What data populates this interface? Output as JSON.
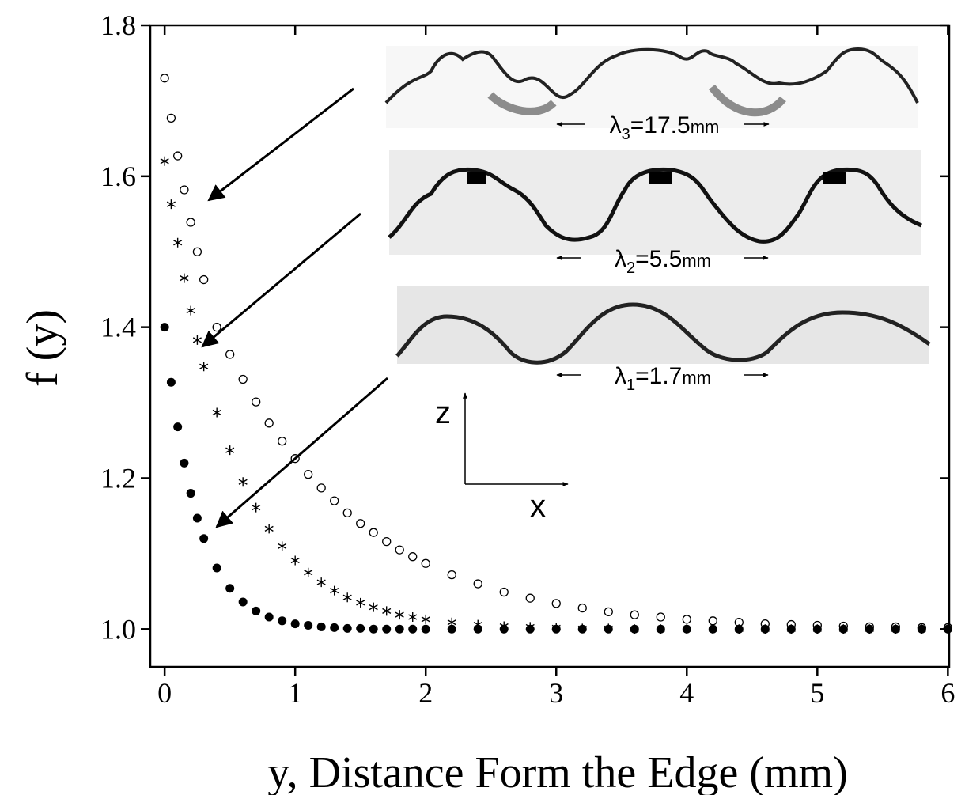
{
  "chart_data": {
    "type": "scatter",
    "xlabel": "y, Distance Form the Edge (mm)",
    "ylabel": "f (y)",
    "x": [
      0,
      0.05,
      0.1,
      0.15,
      0.2,
      0.25,
      0.3,
      0.4,
      0.5,
      0.6,
      0.7,
      0.8,
      0.9,
      1.0,
      1.1,
      1.2,
      1.3,
      1.4,
      1.5,
      1.6,
      1.7,
      1.8,
      1.9,
      2.0,
      2.2,
      2.4,
      2.6,
      2.8,
      3.0,
      3.2,
      3.4,
      3.6,
      3.8,
      4.0,
      4.2,
      4.4,
      4.6,
      4.8,
      5.0,
      5.2,
      5.4,
      5.6,
      5.8,
      6.0
    ],
    "series": [
      {
        "marker": "circle-open",
        "color": "#000000",
        "values": [
          1.73,
          1.677,
          1.627,
          1.582,
          1.539,
          1.5,
          1.463,
          1.4,
          1.364,
          1.331,
          1.301,
          1.273,
          1.249,
          1.226,
          1.205,
          1.187,
          1.17,
          1.154,
          1.14,
          1.128,
          1.116,
          1.105,
          1.096,
          1.087,
          1.072,
          1.06,
          1.049,
          1.041,
          1.034,
          1.028,
          1.023,
          1.019,
          1.016,
          1.013,
          1.011,
          1.009,
          1.007,
          1.006,
          1.005,
          1.004,
          1.003,
          1.003,
          1.002,
          1.002
        ]
      },
      {
        "marker": "asterisk",
        "color": "#000000",
        "values": [
          1.62,
          1.563,
          1.512,
          1.465,
          1.422,
          1.383,
          1.348,
          1.287,
          1.237,
          1.195,
          1.161,
          1.133,
          1.11,
          1.091,
          1.075,
          1.062,
          1.051,
          1.042,
          1.035,
          1.029,
          1.024,
          1.019,
          1.016,
          1.013,
          1.009,
          1.006,
          1.004,
          1.003,
          1.002,
          1.001,
          1.001,
          1,
          1,
          1,
          1,
          1,
          1,
          1,
          1,
          1,
          1,
          1,
          1,
          1
        ]
      },
      {
        "marker": "circle-filled",
        "color": "#000000",
        "values": [
          1.4,
          1.327,
          1.268,
          1.22,
          1.18,
          1.147,
          1.12,
          1.081,
          1.054,
          1.036,
          1.024,
          1.016,
          1.011,
          1.007,
          1.005,
          1.003,
          1.002,
          1.001,
          1.001,
          1,
          1,
          1,
          1,
          1,
          1,
          1,
          1,
          1,
          1,
          1,
          1,
          1,
          1,
          1,
          1,
          1,
          1,
          1,
          1,
          1,
          1,
          1,
          1,
          1
        ]
      }
    ],
    "xlim": [
      -0.11,
      6.01
    ],
    "ylim": [
      0.95,
      1.8
    ],
    "xticks": [
      0,
      1,
      2,
      3,
      4,
      5,
      6
    ],
    "yticks": [
      {
        "value": 1,
        "label": "1.0"
      },
      1.2,
      1.4,
      1.6,
      1.8
    ],
    "annotations": [
      {
        "symbol": "λ",
        "index": "3",
        "value": "=17.5",
        "unit": "mm"
      },
      {
        "symbol": "λ",
        "index": "2",
        "value": "=5.5",
        "unit": "mm"
      },
      {
        "symbol": "λ",
        "index": "1",
        "value": "=1.7",
        "unit": "mm"
      }
    ],
    "inset_axes": [
      "z",
      "x"
    ]
  }
}
